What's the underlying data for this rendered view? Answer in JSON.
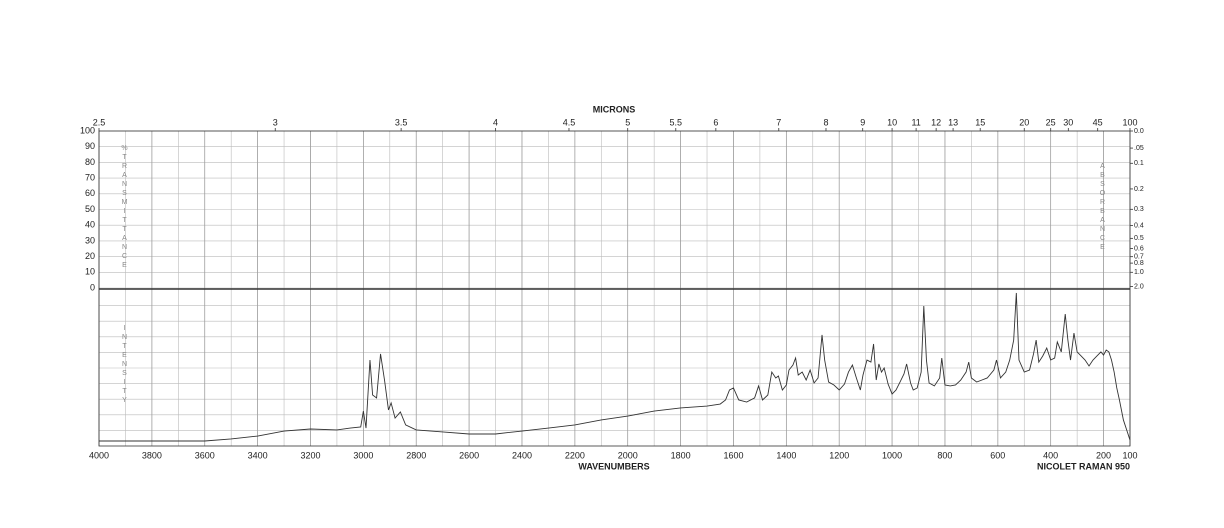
{
  "chart_data": {
    "type": "line",
    "x_label": "WAVENUMBERS",
    "x2_label": "MICRONS",
    "y_label": "%TRANSMITTANCE",
    "y2_label": "ABSORBANCE",
    "lower_label": "INTENSITY",
    "instrument": "NICOLET RAMAN 950",
    "xlim": [
      4000,
      100
    ],
    "xticks": [
      4000,
      3800,
      3600,
      3400,
      3200,
      3000,
      2800,
      2600,
      2400,
      2200,
      2000,
      1800,
      1600,
      1400,
      1200,
      1000,
      800,
      600,
      400,
      200,
      100
    ],
    "x2_scale": "reciprocal",
    "x2ticks": [
      2.5,
      3,
      3.5,
      4,
      4.5,
      5,
      5.5,
      6,
      7,
      8,
      9,
      10,
      11,
      12,
      13,
      15,
      20,
      25,
      30,
      45,
      100
    ],
    "ylim": [
      0,
      100
    ],
    "yticks": [
      0,
      10,
      20,
      30,
      40,
      50,
      60,
      70,
      80,
      90,
      100
    ],
    "y2_scale": "absorbance",
    "y2ticks": [
      {
        "value": 0,
        "label": "0.0"
      },
      {
        "value": 0.05,
        "label": ".05"
      },
      0.1,
      0.2,
      0.3,
      0.4,
      0.5,
      0.6,
      0.7,
      0.8,
      {
        "value": 1,
        "label": "1.0"
      },
      {
        "value": 2,
        "label": "2.0"
      }
    ],
    "grid": true,
    "color": "#333333",
    "intensity_lim": [
      0,
      100
    ],
    "x": [
      4000,
      3800,
      3600,
      3500,
      3400,
      3300,
      3200,
      3100,
      3050,
      3010,
      3000,
      2990,
      2975,
      2965,
      2950,
      2935,
      2920,
      2905,
      2895,
      2880,
      2860,
      2840,
      2800,
      2700,
      2600,
      2500,
      2400,
      2300,
      2200,
      2100,
      2000,
      1900,
      1800,
      1700,
      1650,
      1630,
      1615,
      1600,
      1580,
      1550,
      1520,
      1505,
      1490,
      1470,
      1455,
      1440,
      1430,
      1415,
      1400,
      1390,
      1375,
      1365,
      1355,
      1340,
      1325,
      1310,
      1295,
      1280,
      1265,
      1255,
      1240,
      1220,
      1200,
      1180,
      1165,
      1150,
      1135,
      1120,
      1110,
      1095,
      1080,
      1070,
      1060,
      1050,
      1040,
      1030,
      1015,
      1000,
      985,
      970,
      955,
      945,
      930,
      920,
      905,
      890,
      880,
      870,
      860,
      840,
      820,
      812,
      800,
      780,
      760,
      740,
      720,
      710,
      700,
      680,
      660,
      640,
      615,
      605,
      590,
      570,
      555,
      540,
      530,
      520,
      500,
      480,
      465,
      455,
      445,
      430,
      415,
      400,
      385,
      375,
      360,
      345,
      335,
      325,
      312,
      300,
      285,
      270,
      255,
      240,
      225,
      210,
      200,
      190,
      180,
      170,
      160,
      150,
      140,
      125,
      110,
      100
    ],
    "values": [
      3.2,
      3.2,
      3.2,
      4.5,
      6.4,
      9.6,
      10.9,
      10.3,
      11.5,
      12.2,
      22.4,
      11.5,
      55.1,
      32.7,
      30.8,
      59.0,
      42.3,
      23.1,
      27.6,
      17.9,
      21.8,
      13.5,
      10.3,
      9.0,
      7.7,
      7.7,
      9.6,
      11.5,
      13.5,
      16.7,
      19.2,
      22.4,
      24.4,
      25.6,
      26.9,
      29.5,
      35.9,
      37.2,
      29.5,
      28.2,
      30.8,
      38.5,
      29.5,
      32.7,
      47.4,
      43.6,
      44.9,
      35.9,
      39.1,
      48.7,
      51.9,
      56.4,
      45.5,
      47.4,
      42.3,
      48.7,
      40.4,
      43.6,
      71.2,
      55.1,
      41.0,
      39.1,
      35.9,
      39.7,
      47.4,
      51.9,
      43.6,
      35.9,
      45.5,
      55.1,
      53.8,
      65.4,
      42.3,
      52.6,
      47.4,
      50.0,
      39.7,
      33.3,
      35.9,
      41.0,
      46.2,
      52.6,
      40.4,
      35.9,
      37.2,
      47.4,
      89.7,
      55.1,
      40.4,
      38.5,
      43.6,
      56.4,
      39.1,
      38.5,
      39.1,
      42.3,
      47.4,
      53.8,
      43.6,
      41.0,
      42.3,
      43.6,
      48.7,
      55.1,
      43.6,
      47.4,
      55.1,
      67.9,
      98.1,
      55.1,
      47.4,
      48.7,
      59.0,
      67.9,
      53.8,
      57.7,
      62.8,
      55.1,
      56.4,
      66.7,
      60.3,
      84.6,
      67.9,
      55.1,
      72.4,
      60.3,
      57.7,
      55.1,
      51.3,
      55.1,
      57.7,
      60.3,
      58.3,
      61.5,
      60.3,
      55.1,
      47.4,
      37.2,
      29.5,
      16.7,
      9.0,
      3.8
    ]
  }
}
